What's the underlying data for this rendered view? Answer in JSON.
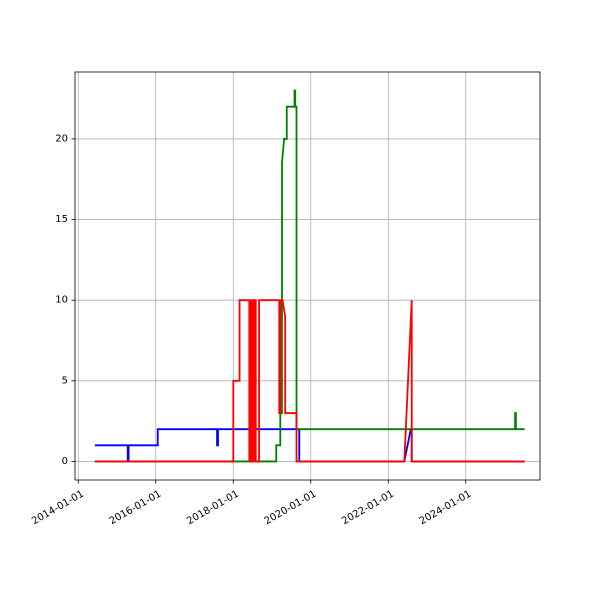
{
  "chart_data": {
    "type": "line",
    "title": "",
    "xlabel": "",
    "ylabel": "",
    "x_axis": "date",
    "xlim": [
      "2013-12-01",
      "2025-12-01"
    ],
    "ylim": [
      -1.15,
      24.15
    ],
    "grid": true,
    "x_ticks": [
      "2014-01-01",
      "2016-01-01",
      "2018-01-01",
      "2020-01-01",
      "2022-01-01",
      "2024-01-01"
    ],
    "y_ticks": [
      0,
      5,
      10,
      15,
      20
    ],
    "series": [
      {
        "color": "#0000ff",
        "points": [
          [
            "2014-06-15",
            1
          ],
          [
            "2015-04-12",
            1
          ],
          [
            "2015-04-12",
            0
          ],
          [
            "2015-04-20",
            0
          ],
          [
            "2015-04-20",
            1
          ],
          [
            "2016-01-20",
            1
          ],
          [
            "2016-01-20",
            2
          ],
          [
            "2017-08-01",
            2
          ],
          [
            "2017-08-01",
            1
          ],
          [
            "2017-08-10",
            1
          ],
          [
            "2017-08-10",
            2
          ],
          [
            "2019-09-15",
            2
          ],
          [
            "2019-09-15",
            0
          ],
          [
            "2022-06-01",
            0
          ],
          [
            "2022-08-01",
            2
          ],
          [
            "2022-08-10",
            2
          ],
          [
            "2022-08-10",
            0
          ],
          [
            "2025-07-01",
            0
          ]
        ]
      },
      {
        "color": "#008000",
        "points": [
          [
            "2014-06-15",
            0
          ],
          [
            "2018-01-01",
            0
          ],
          [
            "2018-01-01",
            0
          ],
          [
            "2019-02-10",
            0
          ],
          [
            "2019-02-10",
            1
          ],
          [
            "2019-03-20",
            1
          ],
          [
            "2019-03-20",
            3
          ],
          [
            "2019-04-05",
            3
          ],
          [
            "2019-04-05",
            18.5
          ],
          [
            "2019-04-25",
            20
          ],
          [
            "2019-05-20",
            20
          ],
          [
            "2019-05-20",
            22
          ],
          [
            "2019-08-01",
            22
          ],
          [
            "2019-08-01",
            23
          ],
          [
            "2019-08-08",
            23
          ],
          [
            "2019-08-08",
            22
          ],
          [
            "2019-08-20",
            22
          ],
          [
            "2019-08-20",
            2
          ],
          [
            "2025-04-10",
            2
          ],
          [
            "2025-04-10",
            3
          ],
          [
            "2025-04-18",
            3
          ],
          [
            "2025-04-18",
            2
          ],
          [
            "2025-07-01",
            2
          ]
        ]
      },
      {
        "color": "#ff0000",
        "points": [
          [
            "2014-06-15",
            0
          ],
          [
            "2018-01-01",
            0
          ],
          [
            "2018-01-01",
            5
          ],
          [
            "2018-03-01",
            5
          ],
          [
            "2018-03-01",
            10
          ],
          [
            "2018-06-01",
            10
          ],
          [
            "2018-06-01",
            0
          ],
          [
            "2018-06-15",
            0
          ],
          [
            "2018-06-15",
            10
          ],
          [
            "2018-07-01",
            10
          ],
          [
            "2018-07-01",
            0
          ],
          [
            "2018-07-15",
            0
          ],
          [
            "2018-07-15",
            10
          ],
          [
            "2018-08-01",
            10
          ],
          [
            "2018-08-01",
            0
          ],
          [
            "2018-09-01",
            0
          ],
          [
            "2018-09-01",
            10
          ],
          [
            "2019-03-10",
            10
          ],
          [
            "2019-03-10",
            3
          ],
          [
            "2019-03-20",
            3
          ],
          [
            "2019-03-20",
            10
          ],
          [
            "2019-04-10",
            10
          ],
          [
            "2019-05-05",
            9
          ],
          [
            "2019-05-05",
            3
          ],
          [
            "2019-08-20",
            3
          ],
          [
            "2019-08-20",
            0
          ],
          [
            "2022-06-01",
            0
          ],
          [
            "2022-08-10",
            10
          ],
          [
            "2022-08-10",
            0
          ],
          [
            "2025-07-01",
            0
          ]
        ]
      }
    ]
  }
}
